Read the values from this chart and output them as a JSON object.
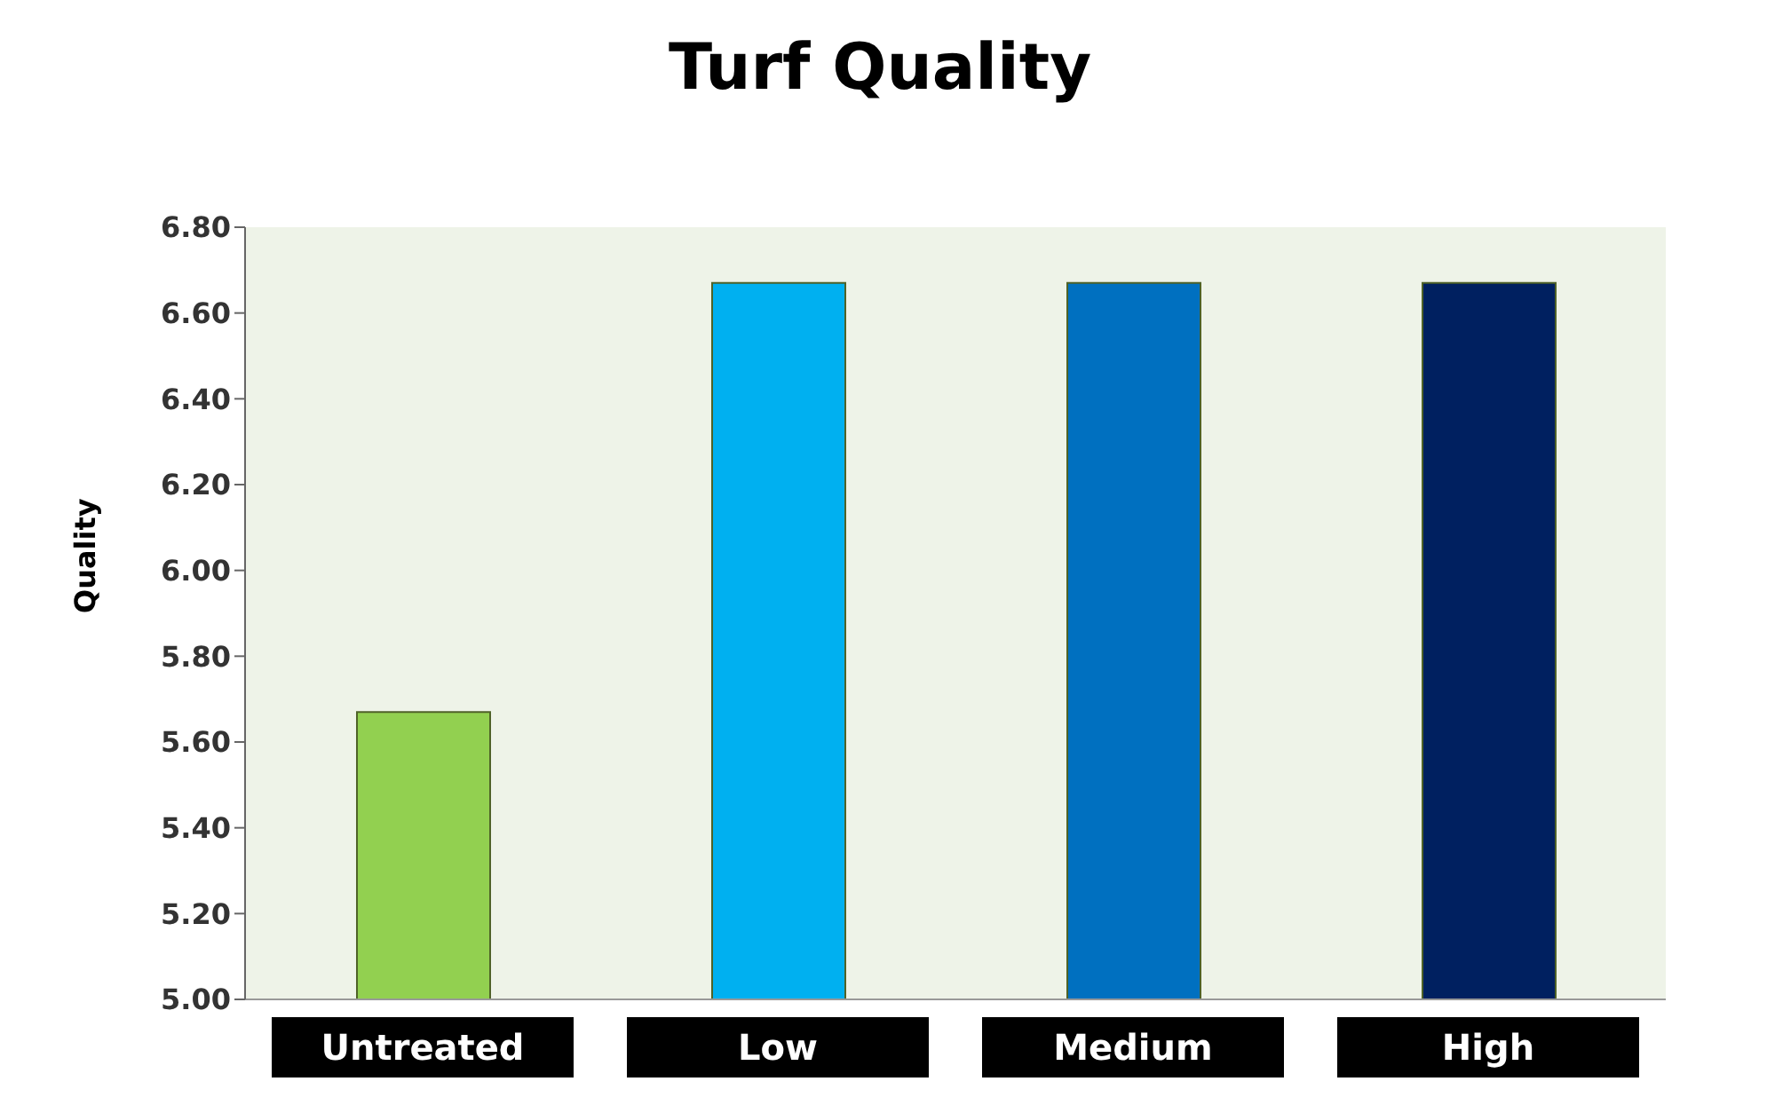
{
  "chart_data": {
    "type": "bar",
    "title": "Turf Quality",
    "ylabel": "Quality",
    "categories": [
      "Untreated",
      "Low",
      "Medium",
      "High"
    ],
    "values": [
      5.67,
      6.67,
      6.67,
      6.67
    ],
    "colors": [
      "#92d050",
      "#00b0f0",
      "#0070c0",
      "#002060"
    ],
    "ylim": [
      5,
      6.8
    ],
    "yticks": [
      {
        "value": 5,
        "label": "5.00"
      },
      {
        "value": 5.2,
        "label": "5.20"
      },
      {
        "value": 5.4,
        "label": "5.40"
      },
      {
        "value": 5.6,
        "label": "5.60"
      },
      {
        "value": 5.8,
        "label": "5.80"
      },
      {
        "value": 6,
        "label": "6.00"
      },
      {
        "value": 6.2,
        "label": "6.20"
      },
      {
        "value": 6.4,
        "label": "6.40"
      },
      {
        "value": 6.6,
        "label": "6.60"
      },
      {
        "value": 6.8,
        "label": "6.80"
      }
    ],
    "grid": false
  }
}
